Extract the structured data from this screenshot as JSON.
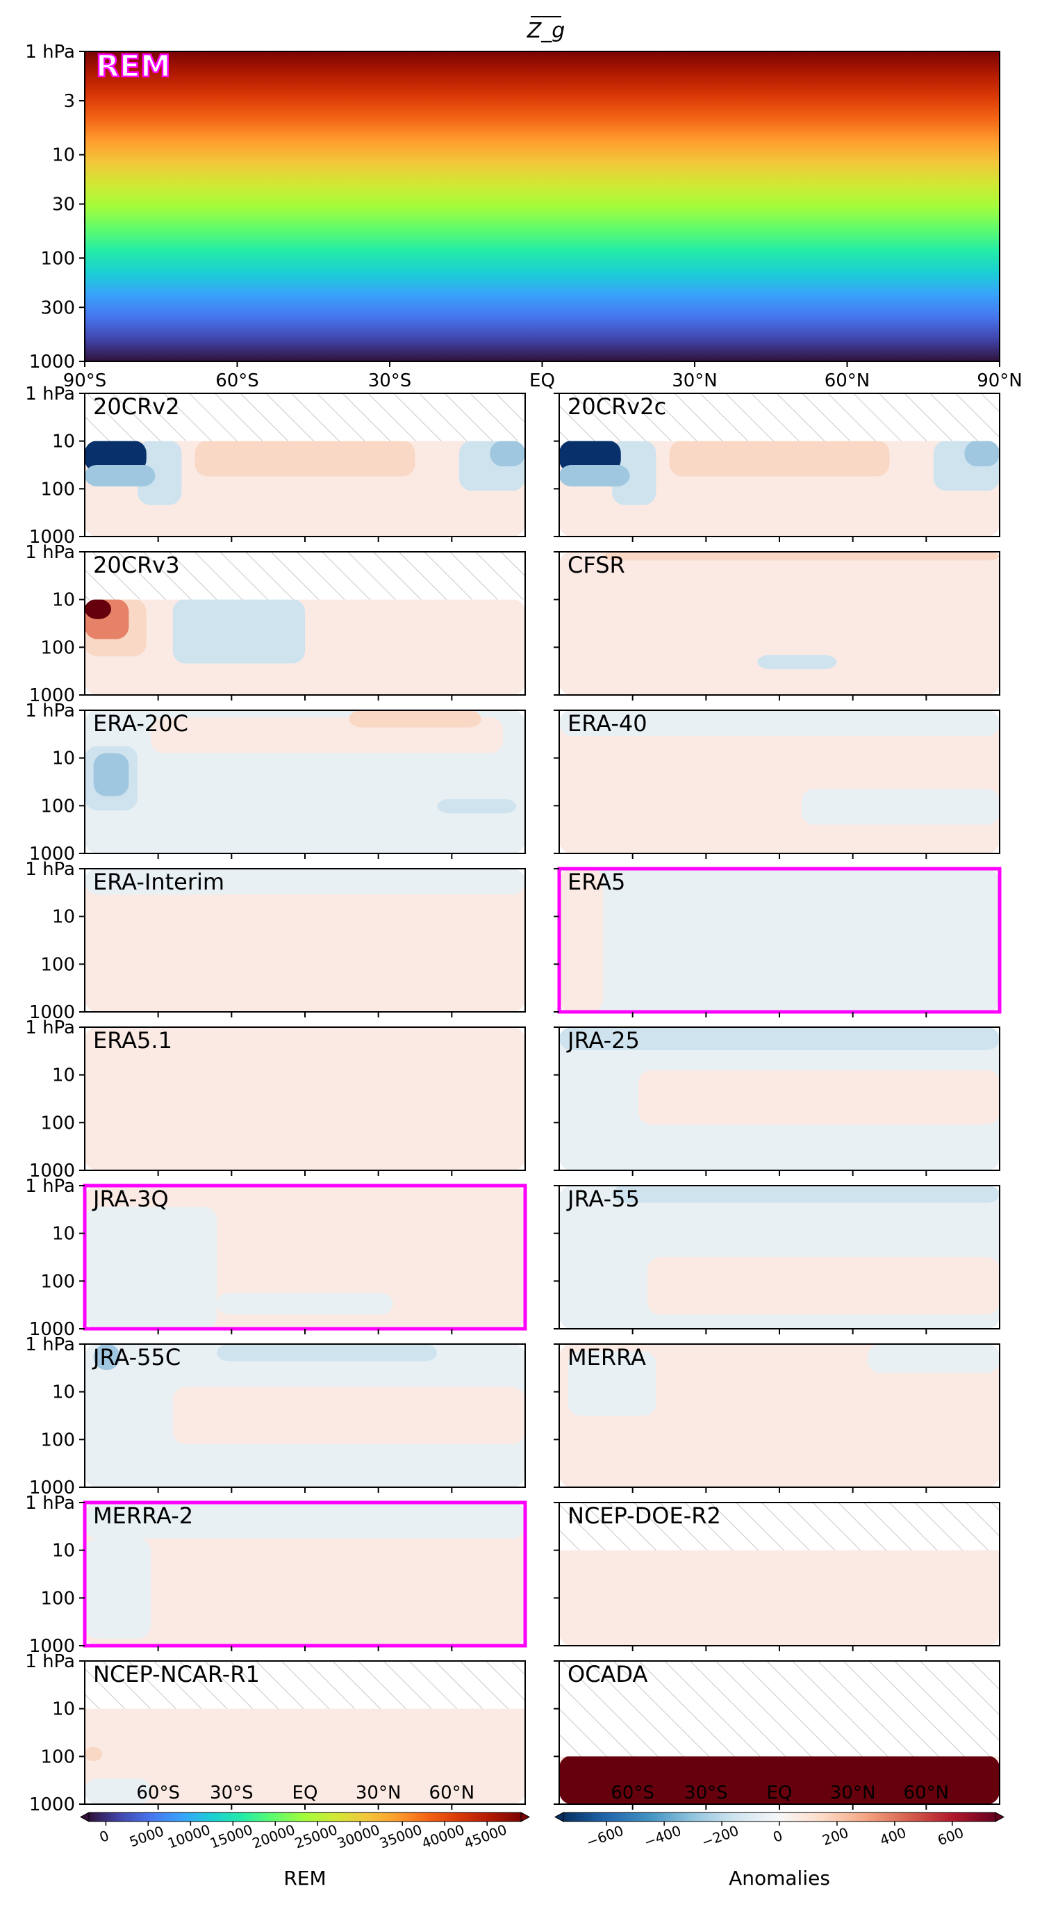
{
  "chart_data": {
    "type": "heatmap",
    "title": "Z_g",
    "x_tick_labels": [
      "90°S",
      "60°S",
      "30°S",
      "EQ",
      "30°N",
      "60°N",
      "90°N"
    ],
    "x_tick_values": [
      -90,
      -60,
      -30,
      0,
      30,
      60,
      90
    ],
    "y_tick_labels": [
      "1 hPa",
      "3",
      "10",
      "30",
      "100",
      "300",
      "1000"
    ],
    "y_tick_values": [
      1,
      3,
      10,
      30,
      100,
      300,
      1000
    ],
    "y_scale": "log",
    "y_lim": [
      1000,
      1
    ],
    "top_panel": {
      "label": "REM",
      "colormap": "turbo",
      "value_top": 47000,
      "value_bottom": 0
    },
    "panels": [
      {
        "label": "20CRv2",
        "highlight": false,
        "hatch_top_hpa": 10,
        "hatch_bottom_hpa": null
      },
      {
        "label": "20CRv2c",
        "highlight": false,
        "hatch_top_hpa": 10,
        "hatch_bottom_hpa": null
      },
      {
        "label": "20CRv3",
        "highlight": false,
        "hatch_top_hpa": 10,
        "hatch_bottom_hpa": null
      },
      {
        "label": "CFSR",
        "highlight": false,
        "hatch_top_hpa": null,
        "hatch_bottom_hpa": null
      },
      {
        "label": "ERA-20C",
        "highlight": false,
        "hatch_top_hpa": null,
        "hatch_bottom_hpa": null
      },
      {
        "label": "ERA-40",
        "highlight": false,
        "hatch_top_hpa": null,
        "hatch_bottom_hpa": null
      },
      {
        "label": "ERA-Interim",
        "highlight": false,
        "hatch_top_hpa": null,
        "hatch_bottom_hpa": null
      },
      {
        "label": "ERA5",
        "highlight": true,
        "hatch_top_hpa": null,
        "hatch_bottom_hpa": null
      },
      {
        "label": "ERA5.1",
        "highlight": false,
        "hatch_top_hpa": null,
        "hatch_bottom_hpa": null
      },
      {
        "label": "JRA-25",
        "highlight": false,
        "hatch_top_hpa": null,
        "hatch_bottom_hpa": null
      },
      {
        "label": "JRA-3Q",
        "highlight": true,
        "hatch_top_hpa": null,
        "hatch_bottom_hpa": null
      },
      {
        "label": "JRA-55",
        "highlight": false,
        "hatch_top_hpa": null,
        "hatch_bottom_hpa": null
      },
      {
        "label": "JRA-55C",
        "highlight": false,
        "hatch_top_hpa": null,
        "hatch_bottom_hpa": null
      },
      {
        "label": "MERRA",
        "highlight": false,
        "hatch_top_hpa": null,
        "hatch_bottom_hpa": null
      },
      {
        "label": "MERRA-2",
        "highlight": true,
        "hatch_top_hpa": null,
        "hatch_bottom_hpa": null
      },
      {
        "label": "NCEP-DOE-R2",
        "highlight": false,
        "hatch_top_hpa": 10,
        "hatch_bottom_hpa": null
      },
      {
        "label": "NCEP-NCAR-R1",
        "highlight": false,
        "hatch_top_hpa": 10,
        "hatch_bottom_hpa": null
      },
      {
        "label": "OCADA",
        "highlight": false,
        "hatch_top_hpa": 100,
        "hatch_bottom_hpa": null
      }
    ],
    "colorbars": [
      {
        "label": "REM",
        "colormap": "turbo",
        "ticks": [
          0,
          5000,
          10000,
          15000,
          20000,
          25000,
          30000,
          35000,
          40000,
          45000
        ],
        "range": [
          -2000,
          49000
        ]
      },
      {
        "label": "Anomalies",
        "colormap": "RdBu_r",
        "ticks": [
          -600,
          -400,
          -200,
          0,
          200,
          400,
          600
        ],
        "range": [
          -750,
          750
        ]
      }
    ],
    "colorbar_lat_labels": [
      "60°S",
      "30°S",
      "EQ",
      "30°N",
      "60°N"
    ],
    "highlight_color": "#ff00ff",
    "anomaly_colors": {
      "pale_red": "#fbeae4",
      "pale_blue": "#e8f0f4",
      "light_red": "#f9d8c6",
      "light_blue": "#cfe3ef",
      "mid_blue": "#9fc8e0",
      "deep_blue": "#08306b",
      "deep_red": "#67000d",
      "mid_red": "#e58267"
    }
  }
}
